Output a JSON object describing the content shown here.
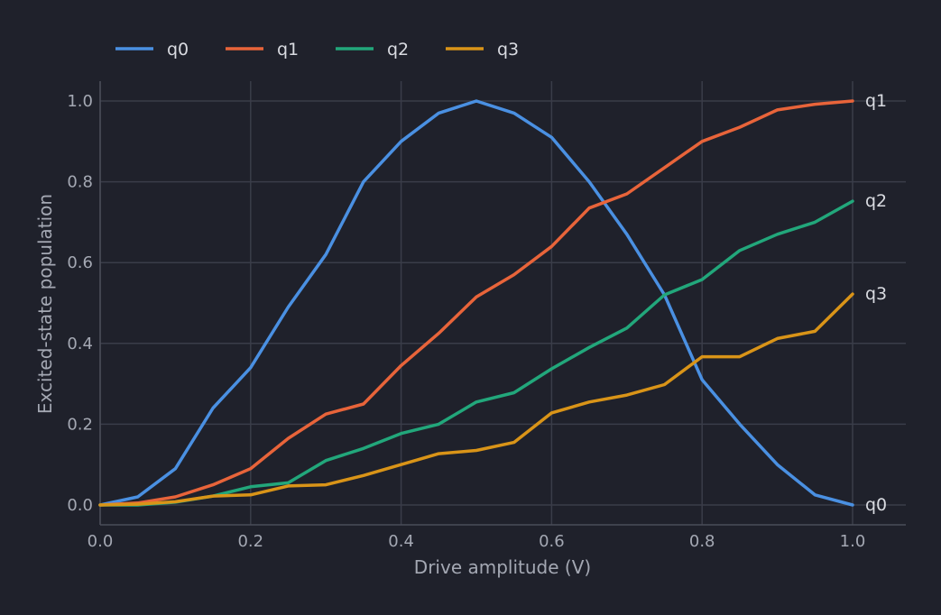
{
  "chart_data": {
    "type": "line",
    "title": "",
    "xlabel": "Drive amplitude (V)",
    "ylabel": "Excited-state population",
    "xlim": [
      0.0,
      1.0
    ],
    "ylim": [
      0.0,
      1.0
    ],
    "xticks": [
      0.0,
      0.2,
      0.4,
      0.6,
      0.8,
      1.0
    ],
    "xtick_labels": [
      "0.0",
      "0.2",
      "0.4",
      "0.6",
      "0.8",
      "1.0"
    ],
    "yticks": [
      0.0,
      0.2,
      0.4,
      0.6,
      0.8,
      1.0
    ],
    "ytick_labels": [
      "0.0",
      "0.2",
      "0.4",
      "0.6",
      "0.8",
      "1.0"
    ],
    "grid": true,
    "legend_position": "top-left",
    "x": [
      0.0,
      0.05,
      0.1,
      0.15,
      0.2,
      0.25,
      0.3,
      0.35,
      0.4,
      0.45,
      0.5,
      0.55,
      0.6,
      0.65,
      0.7,
      0.75,
      0.8,
      0.85,
      0.9,
      0.95,
      1.0
    ],
    "series": [
      {
        "name": "q0",
        "color": "#4a90e2",
        "end_label": "q0",
        "values": [
          0.0,
          0.02,
          0.09,
          0.24,
          0.34,
          0.49,
          0.62,
          0.8,
          0.9,
          0.97,
          1.0,
          0.97,
          0.91,
          0.8,
          0.67,
          0.52,
          0.31,
          0.2,
          0.1,
          0.025,
          0.0
        ]
      },
      {
        "name": "q1",
        "color": "#e8643a",
        "end_label": "q1",
        "values": [
          0.0,
          0.005,
          0.02,
          0.05,
          0.09,
          0.165,
          0.225,
          0.25,
          0.345,
          0.425,
          0.515,
          0.57,
          0.64,
          0.735,
          0.77,
          0.835,
          0.9,
          0.935,
          0.978,
          0.992,
          1.0
        ]
      },
      {
        "name": "q2",
        "color": "#22a77b",
        "end_label": "q2",
        "values": [
          0.0,
          0.0,
          0.007,
          0.022,
          0.045,
          0.055,
          0.11,
          0.14,
          0.177,
          0.2,
          0.255,
          0.278,
          0.337,
          0.39,
          0.438,
          0.52,
          0.558,
          0.63,
          0.67,
          0.7,
          0.752
        ]
      },
      {
        "name": "q3",
        "color": "#d99418",
        "end_label": "q3",
        "values": [
          0.0,
          0.002,
          0.008,
          0.022,
          0.025,
          0.047,
          0.05,
          0.073,
          0.1,
          0.127,
          0.135,
          0.155,
          0.228,
          0.255,
          0.272,
          0.298,
          0.367,
          0.367,
          0.412,
          0.43,
          0.522
        ]
      }
    ]
  }
}
